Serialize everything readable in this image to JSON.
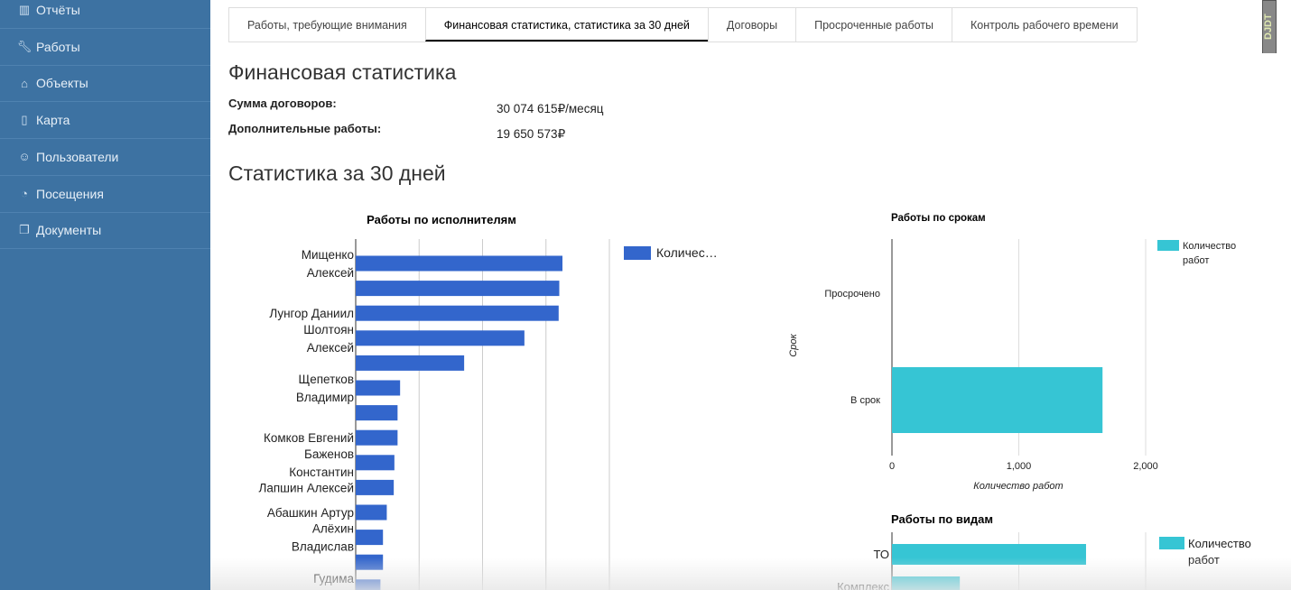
{
  "sidebar": {
    "items": [
      {
        "label": "Отчёты",
        "icon": "bar-chart-icon"
      },
      {
        "label": "Работы",
        "icon": "wrench-icon"
      },
      {
        "label": "Объекты",
        "icon": "home-icon"
      },
      {
        "label": "Карта",
        "icon": "map-icon"
      },
      {
        "label": "Пользователи",
        "icon": "users-icon"
      },
      {
        "label": "Посещения",
        "icon": "rss-icon"
      },
      {
        "label": "Документы",
        "icon": "documents-icon"
      }
    ]
  },
  "tabs": [
    {
      "label": "Работы, требующие внимания",
      "active": false
    },
    {
      "label": "Финансовая статистика, статистика за 30 дней",
      "active": true
    },
    {
      "label": "Договоры",
      "active": false
    },
    {
      "label": "Просроченные работы",
      "active": false
    },
    {
      "label": "Контроль рабочего времени",
      "active": false
    }
  ],
  "finance": {
    "title": "Финансовая статистика",
    "contracts_label": "Сумма договоров:",
    "contracts_value": "30 074 615₽/месяц",
    "extra_label": "Дополнительные работы:",
    "extra_value": "19 650 573₽"
  },
  "stats_title": "Статистика за 30 дней",
  "debug_badge": "DJDT",
  "chart_data": [
    {
      "type": "bar",
      "title": "Работы по исполнителям",
      "legend": [
        "Количес…"
      ],
      "legend_position": "right",
      "color": "#3366cc",
      "categories": [
        "Мищенко Алексей",
        "",
        "Лунгор Даниил",
        "Шолтоян Алексей",
        "",
        "Щепетков Владимир",
        "",
        "Комков Евгений",
        "Баженов Константин",
        "Лапшин Алексей",
        "Абашкин Артур",
        "Алёхин Владислав",
        "",
        "Гудима Владимир"
      ],
      "values": [
        326,
        321,
        320,
        266,
        171,
        70,
        66,
        66,
        61,
        60,
        49,
        43,
        43,
        39
      ],
      "xlim": [
        0,
        400
      ]
    },
    {
      "type": "bar",
      "title": "Работы по срокам",
      "ylabel": "Срок",
      "xlabel": "Количество работ",
      "legend": [
        "Количество работ"
      ],
      "legend_position": "right",
      "color": "#36c5d4",
      "categories": [
        "Просрочено",
        "В срок"
      ],
      "values": [
        0,
        1660
      ],
      "xlim": [
        0,
        2000
      ],
      "ticks": [
        "0",
        "1,000",
        "2,000"
      ]
    },
    {
      "type": "bar",
      "title": "Работы по видам",
      "legend": [
        "Количество работ"
      ],
      "legend_position": "right",
      "color": "#36c5d4",
      "categories": [
        "ТО",
        "Комплекс"
      ],
      "values": [
        1530,
        535
      ],
      "xlim": [
        0,
        2000
      ]
    }
  ]
}
